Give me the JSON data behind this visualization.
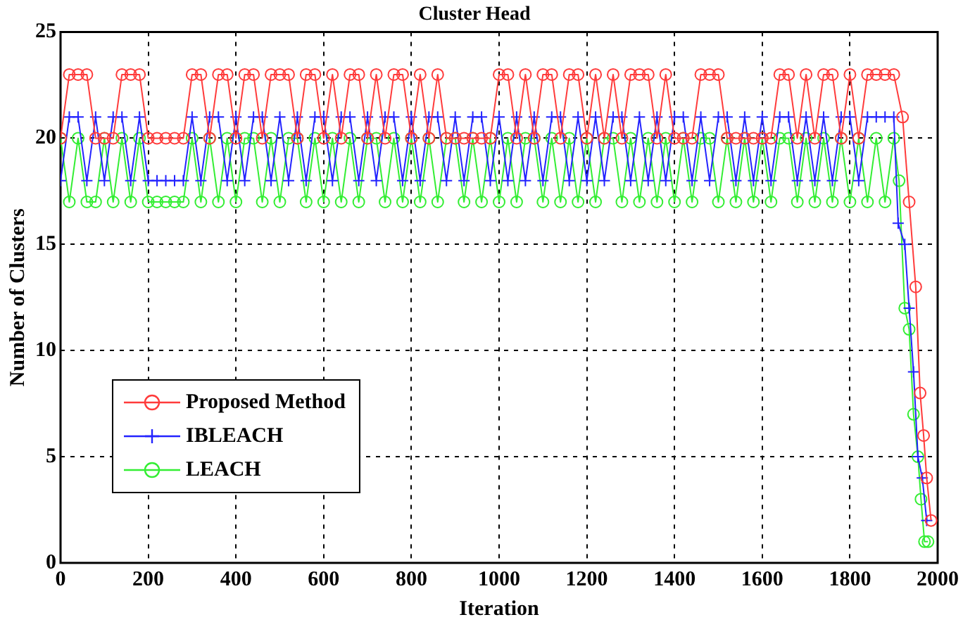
{
  "chart_data": {
    "type": "line",
    "title": "Cluster Head",
    "xlabel": "Iteration",
    "ylabel": "Number of Clusters",
    "xlim": [
      0,
      2000
    ],
    "xticks": [
      0,
      200,
      400,
      600,
      800,
      1000,
      1200,
      1400,
      1600,
      1800,
      2000
    ],
    "ylim": [
      0,
      25
    ],
    "yticks": [
      0,
      5,
      10,
      15,
      20,
      25
    ],
    "grid": true,
    "legend": "bottom left",
    "line_style": "solid",
    "series": [
      {
        "name": "Proposed Method",
        "color": "#ff3b3b",
        "marker": "circle",
        "x": [
          0,
          20,
          40,
          60,
          80,
          100,
          120,
          140,
          160,
          180,
          200,
          220,
          240,
          260,
          280,
          300,
          320,
          340,
          360,
          380,
          400,
          420,
          440,
          460,
          480,
          500,
          520,
          540,
          560,
          580,
          600,
          620,
          640,
          660,
          680,
          700,
          720,
          740,
          760,
          780,
          800,
          820,
          840,
          860,
          880,
          900,
          920,
          940,
          960,
          980,
          1000,
          1020,
          1040,
          1060,
          1080,
          1100,
          1120,
          1140,
          1160,
          1180,
          1200,
          1220,
          1240,
          1260,
          1280,
          1300,
          1320,
          1340,
          1360,
          1380,
          1400,
          1420,
          1440,
          1460,
          1480,
          1500,
          1520,
          1540,
          1560,
          1580,
          1600,
          1620,
          1640,
          1660,
          1680,
          1700,
          1720,
          1740,
          1760,
          1780,
          1800,
          1820,
          1840,
          1860,
          1880,
          1900,
          1920,
          1935,
          1950,
          1960,
          1968,
          1975,
          1985
        ],
        "values": [
          20,
          23,
          23,
          23,
          20,
          20,
          20,
          23,
          23,
          23,
          20,
          20,
          20,
          20,
          20,
          23,
          23,
          20,
          23,
          23,
          20,
          23,
          23,
          20,
          23,
          23,
          23,
          20,
          23,
          23,
          20,
          23,
          20,
          23,
          23,
          20,
          23,
          20,
          23,
          23,
          20,
          23,
          20,
          23,
          20,
          20,
          20,
          20,
          20,
          20,
          23,
          23,
          20,
          23,
          20,
          23,
          23,
          20,
          23,
          23,
          20,
          23,
          20,
          23,
          20,
          23,
          23,
          23,
          20,
          23,
          20,
          20,
          20,
          23,
          23,
          23,
          20,
          20,
          20,
          20,
          20,
          20,
          23,
          23,
          20,
          23,
          20,
          23,
          23,
          20,
          23,
          20,
          23,
          23,
          23,
          23,
          21,
          17,
          13,
          8,
          6,
          4,
          2
        ]
      },
      {
        "name": "IBLEACH",
        "color": "#2323ff",
        "marker": "cross",
        "x": [
          0,
          20,
          40,
          60,
          80,
          100,
          120,
          140,
          160,
          180,
          200,
          220,
          240,
          260,
          280,
          300,
          320,
          340,
          360,
          380,
          400,
          420,
          440,
          460,
          480,
          500,
          520,
          540,
          560,
          580,
          600,
          620,
          640,
          660,
          680,
          700,
          720,
          740,
          760,
          780,
          800,
          820,
          840,
          860,
          880,
          900,
          920,
          940,
          960,
          980,
          1000,
          1020,
          1040,
          1060,
          1080,
          1100,
          1120,
          1140,
          1160,
          1180,
          1200,
          1220,
          1240,
          1260,
          1280,
          1300,
          1320,
          1340,
          1360,
          1380,
          1400,
          1420,
          1440,
          1460,
          1480,
          1500,
          1520,
          1540,
          1560,
          1580,
          1600,
          1620,
          1640,
          1660,
          1680,
          1700,
          1720,
          1740,
          1760,
          1780,
          1800,
          1820,
          1840,
          1860,
          1880,
          1900,
          1910,
          1925,
          1935,
          1945,
          1955,
          1965,
          1975
        ],
        "values": [
          18,
          21,
          21,
          18,
          21,
          18,
          21,
          21,
          18,
          21,
          18,
          18,
          18,
          18,
          18,
          21,
          18,
          21,
          21,
          18,
          21,
          18,
          21,
          21,
          18,
          21,
          18,
          21,
          18,
          21,
          21,
          18,
          21,
          21,
          18,
          21,
          18,
          21,
          21,
          18,
          21,
          18,
          21,
          21,
          18,
          21,
          18,
          21,
          21,
          18,
          21,
          18,
          21,
          18,
          21,
          18,
          21,
          21,
          18,
          21,
          18,
          21,
          18,
          21,
          21,
          18,
          21,
          18,
          21,
          18,
          21,
          21,
          18,
          21,
          18,
          21,
          21,
          18,
          21,
          18,
          21,
          18,
          21,
          21,
          18,
          21,
          18,
          21,
          18,
          21,
          21,
          18,
          21,
          21,
          21,
          21,
          16,
          15,
          12,
          9,
          5,
          4,
          2
        ]
      },
      {
        "name": "LEACH",
        "color": "#33ee33",
        "marker": "circle",
        "x": [
          0,
          20,
          40,
          60,
          80,
          100,
          120,
          140,
          160,
          180,
          200,
          220,
          240,
          260,
          280,
          300,
          320,
          340,
          360,
          380,
          400,
          420,
          440,
          460,
          480,
          500,
          520,
          540,
          560,
          580,
          600,
          620,
          640,
          660,
          680,
          700,
          720,
          740,
          760,
          780,
          800,
          820,
          840,
          860,
          880,
          900,
          920,
          940,
          960,
          980,
          1000,
          1020,
          1040,
          1060,
          1080,
          1100,
          1120,
          1140,
          1160,
          1180,
          1200,
          1220,
          1240,
          1260,
          1280,
          1300,
          1320,
          1340,
          1360,
          1380,
          1400,
          1420,
          1440,
          1460,
          1480,
          1500,
          1520,
          1540,
          1560,
          1580,
          1600,
          1620,
          1640,
          1660,
          1680,
          1700,
          1720,
          1740,
          1760,
          1780,
          1800,
          1820,
          1840,
          1860,
          1880,
          1900,
          1912,
          1925,
          1935,
          1945,
          1955,
          1962,
          1970,
          1978
        ],
        "values": [
          20,
          17,
          20,
          17,
          17,
          20,
          17,
          20,
          17,
          20,
          17,
          17,
          17,
          17,
          17,
          20,
          17,
          20,
          17,
          20,
          17,
          20,
          20,
          17,
          20,
          17,
          20,
          20,
          17,
          20,
          17,
          20,
          17,
          20,
          17,
          20,
          20,
          17,
          20,
          17,
          20,
          17,
          20,
          17,
          20,
          20,
          17,
          20,
          17,
          20,
          17,
          20,
          17,
          20,
          20,
          17,
          20,
          17,
          20,
          17,
          20,
          17,
          20,
          20,
          17,
          20,
          17,
          20,
          17,
          20,
          17,
          20,
          17,
          20,
          20,
          17,
          20,
          17,
          20,
          17,
          20,
          17,
          20,
          20,
          17,
          20,
          17,
          20,
          17,
          20,
          17,
          20,
          17,
          20,
          17,
          20,
          18,
          12,
          11,
          7,
          5,
          3,
          1,
          1
        ]
      }
    ]
  }
}
